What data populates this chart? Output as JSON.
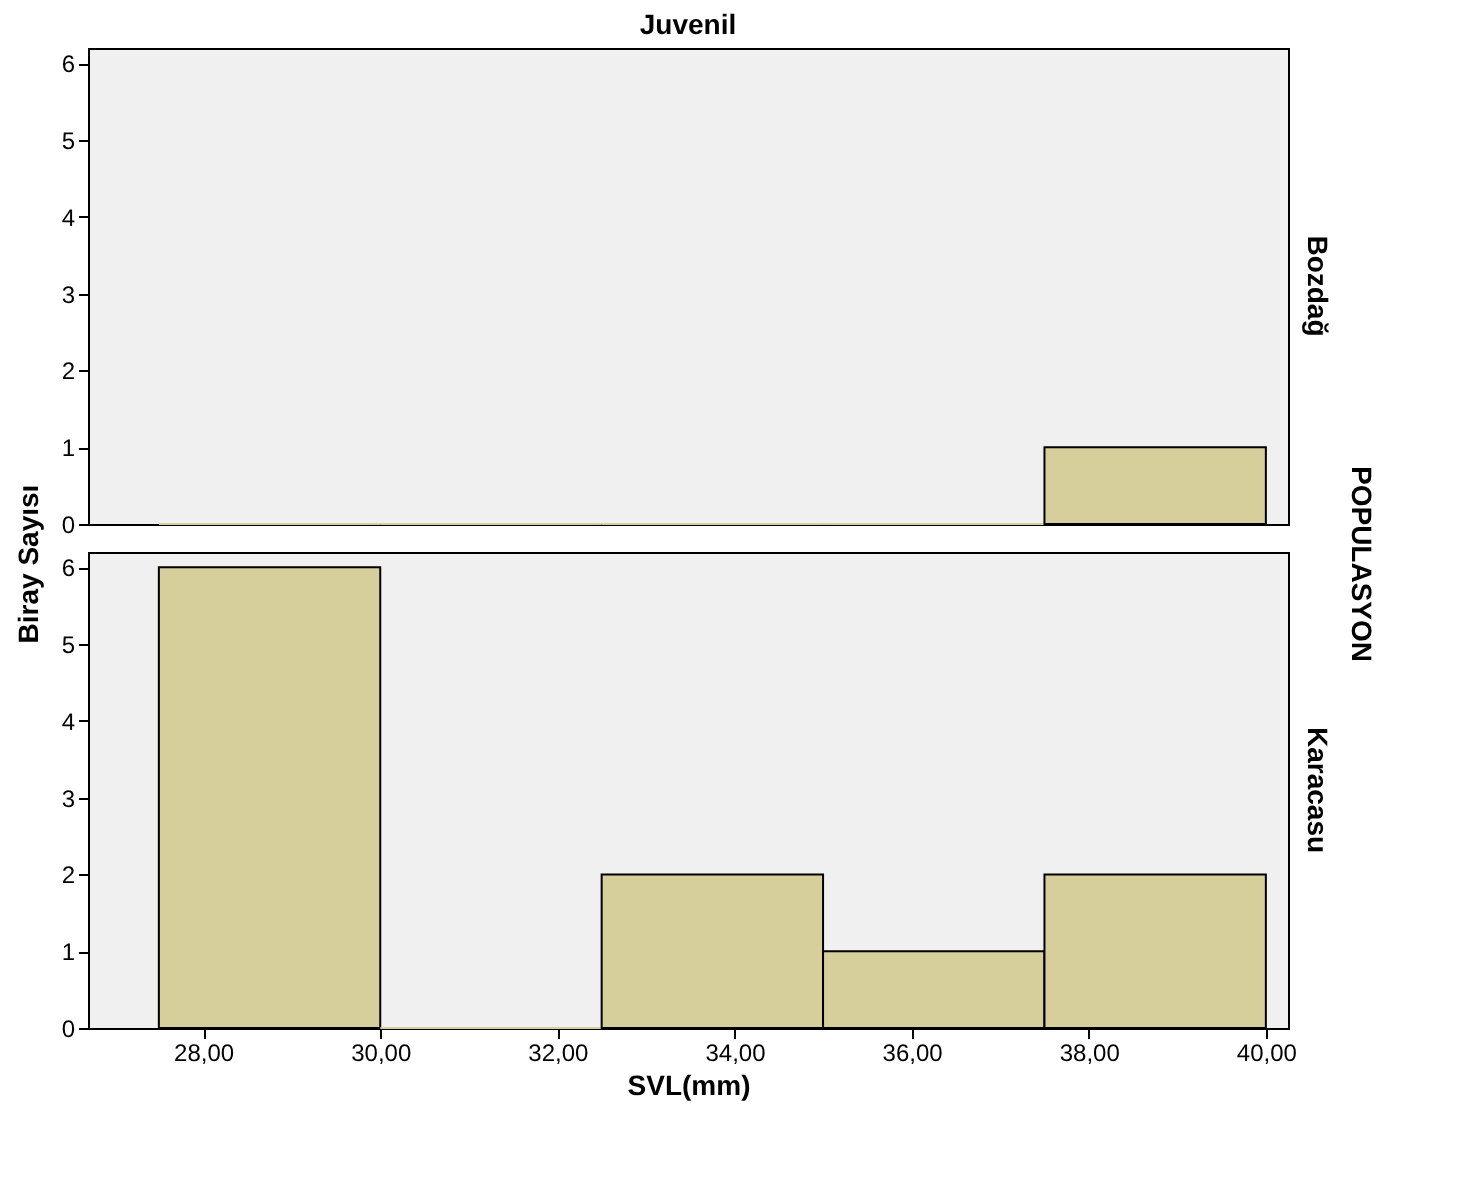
{
  "chart_data": [
    {
      "type": "histogram",
      "title": "Juvenil",
      "ylabel": "Biray Sayısı",
      "y2label": "Bozdağ",
      "annotations": [
        "POPULASYON"
      ],
      "bins": [
        27.5,
        30,
        32.5,
        35,
        37.5,
        40
      ],
      "values": [
        0,
        0,
        0,
        0,
        1
      ],
      "color": "#d6cf9b",
      "xlim": [
        26.7,
        40.25
      ],
      "ylim": [
        0,
        6.2
      ],
      "yticks": [
        0,
        1,
        2,
        3,
        4,
        5,
        6
      ],
      "tick_labels": "y",
      "grid": false
    },
    {
      "type": "histogram",
      "xlabel": "SVL(mm)",
      "y2label": "Karacasu",
      "bins": [
        27.5,
        30,
        32.5,
        35,
        37.5,
        40
      ],
      "values": [
        6,
        0,
        2,
        1,
        2
      ],
      "color": "#d6cf9b",
      "xlim": [
        26.7,
        40.25
      ],
      "xticks": [
        {
          "value": 28,
          "label": "28,00"
        },
        {
          "value": 30,
          "label": "30,00"
        },
        {
          "value": 32,
          "label": "32,00"
        },
        {
          "value": 34,
          "label": "34,00"
        },
        {
          "value": 36,
          "label": "36,00"
        },
        {
          "value": 38,
          "label": "38,00"
        },
        {
          "value": 40,
          "label": "40,00"
        }
      ],
      "ylim": [
        0,
        6.2
      ],
      "yticks": [
        0,
        1,
        2,
        3,
        4,
        5,
        6
      ],
      "grid": false
    }
  ]
}
